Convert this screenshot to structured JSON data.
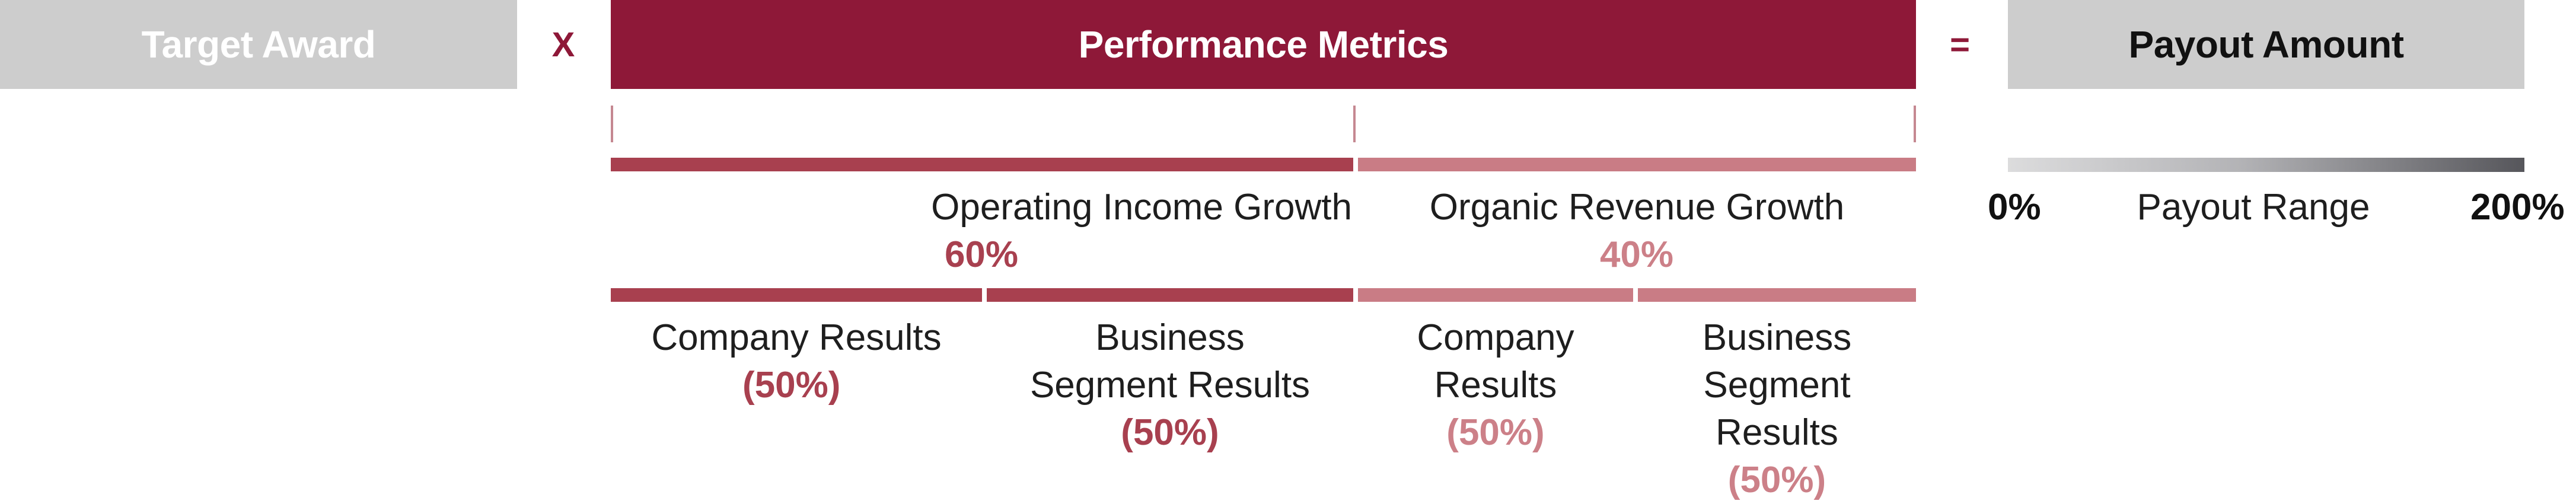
{
  "header": {
    "target_award": "Target Award",
    "multiply": "X",
    "performance_metrics": "Performance Metrics",
    "equals": "=",
    "payout_amount": "Payout Amount"
  },
  "metrics": {
    "operating_income": {
      "label": "Operating Income Growth",
      "weight": "60%",
      "components": [
        {
          "label": "Company Results",
          "weight": "(50%)"
        },
        {
          "label_line1": "Business",
          "label_line2": "Segment Results",
          "weight": "(50%)"
        }
      ]
    },
    "organic_revenue": {
      "label": "Organic Revenue Growth",
      "weight": "40%",
      "components": [
        {
          "label_line1": "Company",
          "label_line2": "Results",
          "weight": "(50%)"
        },
        {
          "label_line1": "Business",
          "label_line2": "Segment",
          "label_line3": "Results",
          "weight": "(50%)"
        }
      ]
    }
  },
  "payout_range": {
    "min": "0%",
    "label": "Payout Range",
    "max": "200%"
  },
  "colors": {
    "primary": "#8e1838",
    "operating_income_bar": "#a8404f",
    "organic_revenue_bar": "#c97c85",
    "header_gray": "#cdcdcd"
  }
}
